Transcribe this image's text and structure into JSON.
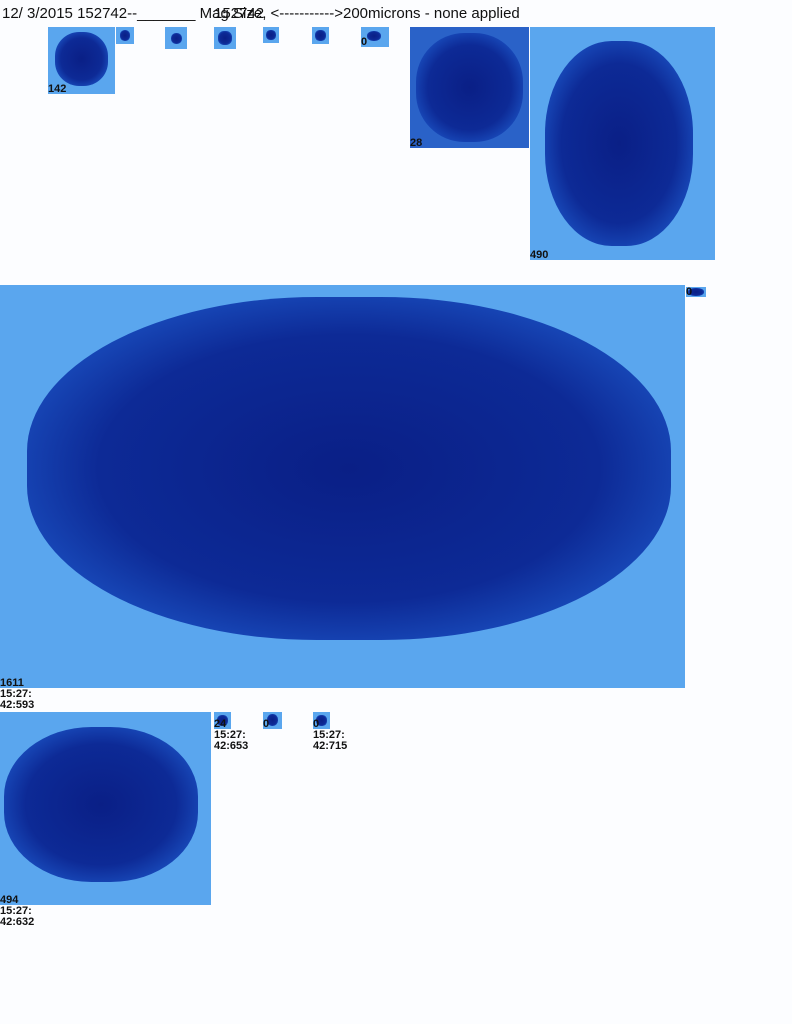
{
  "header": {
    "line": "12/ 3/2015 152742--_______ Mag Size, <----------->200microns - none applied",
    "overlay": "152742"
  },
  "particles": [
    {
      "label": "142"
    },
    {
      "label": ""
    },
    {
      "label": ""
    },
    {
      "label": ""
    },
    {
      "label": ""
    },
    {
      "label": ""
    },
    {
      "label": "0"
    },
    {
      "label": "28"
    },
    {
      "label": "490"
    },
    {
      "label": "1611",
      "time": [
        "15:27:",
        "42:593"
      ]
    },
    {
      "label": "0"
    },
    {
      "label": "494",
      "time": [
        "15:27:",
        "42:632"
      ]
    },
    {
      "label": "24",
      "time": [
        "15:27:",
        "42:653"
      ]
    },
    {
      "label": "0"
    },
    {
      "label": "0",
      "time": [
        "15:27:",
        "42:715"
      ]
    }
  ]
}
